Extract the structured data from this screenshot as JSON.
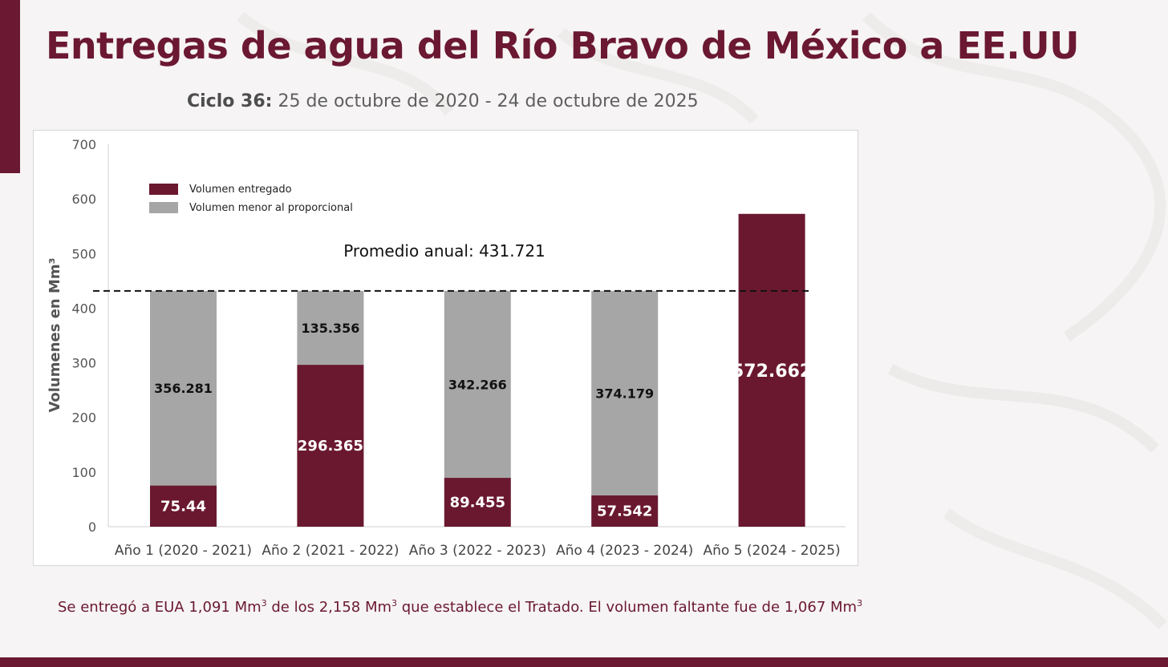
{
  "title": "Entregas de agua del Río Bravo de México a EE.UU",
  "subtitle": {
    "label": "Ciclo 36:",
    "text": " 25 de octubre de 2020 - 24 de octubre de 2025"
  },
  "footnote": {
    "part1": "Se entregó a EUA 1,091 Mm",
    "sup1": "3",
    "part2": " de los 2,158 Mm",
    "sup2": "3",
    "part3": " que establece el Tratado. El volumen faltante fue de 1,067 Mm",
    "sup3": "3"
  },
  "colors": {
    "brand": "#6b1832",
    "delivered": "#6a1830",
    "shortfall": "#a6a6a6",
    "background": "#f6f4f4"
  },
  "chart_data": {
    "type": "bar",
    "stacked": true,
    "categories": [
      "Año 1 (2020 - 2021)",
      "Año 2 (2021 - 2022)",
      "Año 3 (2022 - 2023)",
      "Año 4 (2023 - 2024)",
      "Año 5 (2024 - 2025)"
    ],
    "series": [
      {
        "name": "Volumen entregado",
        "color": "#6a1830",
        "values": [
          75.44,
          296.365,
          89.455,
          57.542,
          572.662
        ],
        "labels": [
          "75.44",
          "296.365",
          "89.455",
          "57.542",
          "572.662"
        ]
      },
      {
        "name": "Volumen menor al proporcional",
        "color": "#a6a6a6",
        "values": [
          356.281,
          135.356,
          342.266,
          374.179,
          0
        ],
        "labels": [
          "356.281",
          "135.356",
          "342.266",
          "374.179",
          ""
        ]
      }
    ],
    "reference_line": {
      "value": 431.721,
      "label": "Promedio anual: 431.721",
      "style": "dashed"
    },
    "ylabel": "Volumenes en Mm³",
    "xlabel": "",
    "ylim": [
      0,
      700
    ],
    "yticks": [
      0,
      100,
      200,
      300,
      400,
      500,
      600,
      700
    ],
    "grid": false,
    "legend_position": "top-left"
  }
}
